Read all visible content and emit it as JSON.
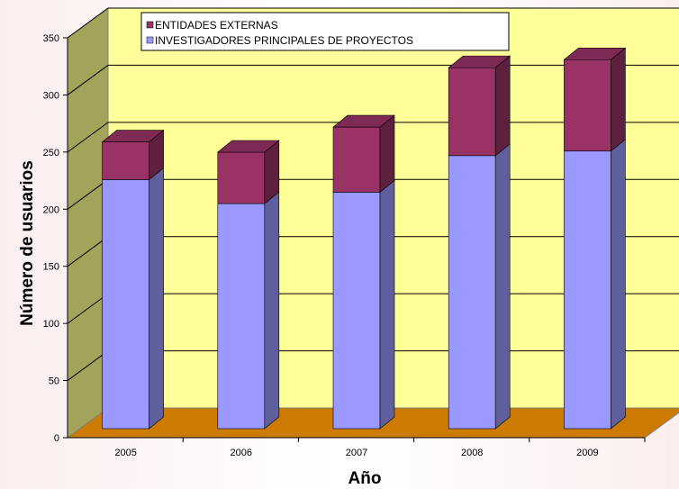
{
  "chart_data": {
    "type": "bar",
    "stacked": true,
    "three_d": true,
    "categories": [
      "2005",
      "2006",
      "2007",
      "2008",
      "2009"
    ],
    "series": [
      {
        "name": "INVESTIGADORES PRINCIPALES DE PROYECTOS",
        "values": [
          218,
          197,
          207,
          239,
          243
        ],
        "color": "#9999ff"
      },
      {
        "name": "ENTIDADES EXTERNAS",
        "values": [
          33,
          45,
          57,
          77,
          80
        ],
        "color": "#993366"
      }
    ],
    "title": "",
    "xlabel": "Año",
    "ylabel": "Número de usuarios",
    "ylim": [
      0,
      350
    ],
    "yticks": [
      0,
      50,
      100,
      150,
      200,
      250,
      300,
      350
    ],
    "grid": true,
    "legend_position": "top-left",
    "colors": {
      "wall": "#ffff99",
      "side_wall": "#a3a35c",
      "floor": "#cc7a00",
      "background": "#ffffff"
    }
  }
}
